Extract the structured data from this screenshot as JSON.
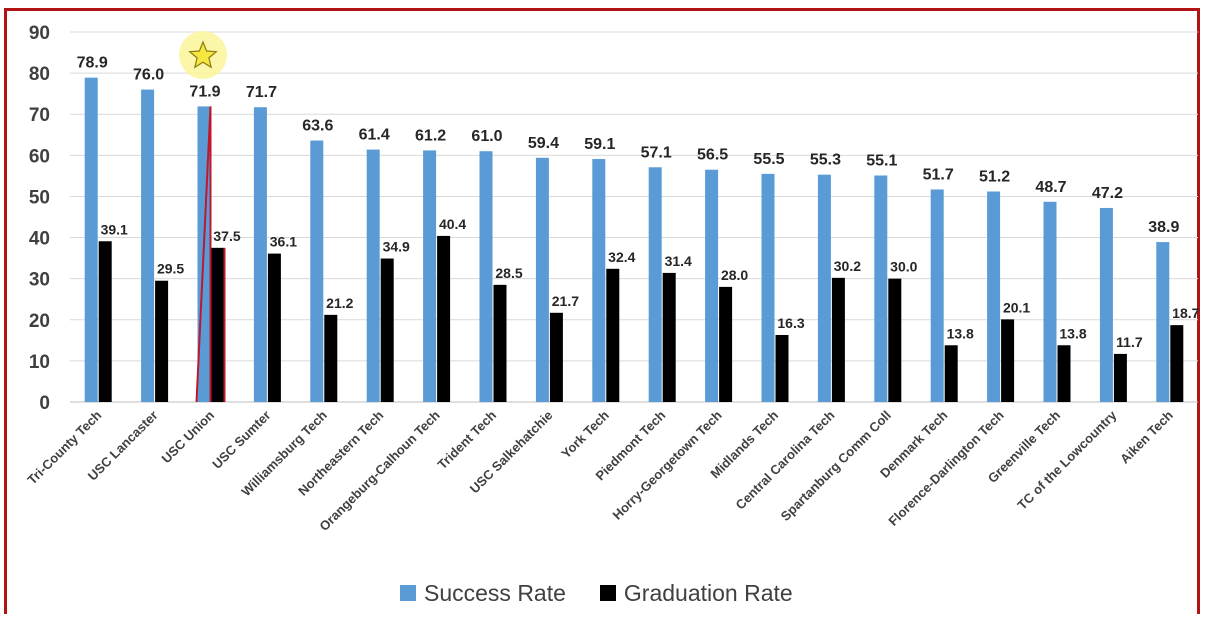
{
  "chart_data": {
    "type": "bar",
    "categories": [
      "Tri-County Tech",
      "USC Lancaster",
      "USC Union",
      "USC Sumter",
      "Williamsburg Tech",
      "Northeastern Tech",
      "Orangeburg-Calhoun Tech",
      "Trident Tech",
      "USC Salkehatchie",
      "York Tech",
      "Piedmont Tech",
      "Horry-Georgetown Tech",
      "Midlands Tech",
      "Central Carolina Tech",
      "Spartanburg Comm Coll",
      "Denmark Tech",
      "Florence-Darlington Tech",
      "Greenville Tech",
      "TC of the Lowcountry",
      "Aiken Tech"
    ],
    "series": [
      {
        "name": "Success Rate",
        "color": "#5b9bd5",
        "values": [
          78.9,
          76.0,
          71.9,
          71.7,
          63.6,
          61.4,
          61.2,
          61.0,
          59.4,
          59.1,
          57.1,
          56.5,
          55.5,
          55.3,
          55.1,
          51.7,
          51.2,
          48.7,
          47.2,
          38.9
        ],
        "labels": [
          "78.9",
          "76.0",
          "71.9",
          "71.7",
          "63.6",
          "61.4",
          "61.2",
          "61.0",
          "59.4",
          "59.1",
          "57.1",
          "56.5",
          "55.5",
          "55.3",
          "55.1",
          "51.7",
          "51.2",
          "48.7",
          "47.2",
          "38.9"
        ]
      },
      {
        "name": "Graduation Rate",
        "color": "#000000",
        "values": [
          39.1,
          29.5,
          37.5,
          36.1,
          21.2,
          34.9,
          40.4,
          28.5,
          21.7,
          32.4,
          31.4,
          28.0,
          16.3,
          30.2,
          30.0,
          13.8,
          20.1,
          13.8,
          11.7,
          18.7
        ],
        "labels": [
          "39.1",
          "29.5",
          "37.5",
          "36.1",
          "21.2",
          "34.9",
          "40.4",
          "28.5",
          "21.7",
          "32.4",
          "31.4",
          "28.0",
          "16.3",
          "30.2",
          "30.0",
          "13.8",
          "20.1",
          "13.8",
          "11.7",
          "18.7"
        ]
      }
    ],
    "ylim": [
      0,
      90
    ],
    "yticks": [
      "0",
      "10",
      "20",
      "30",
      "40",
      "50",
      "60",
      "70",
      "80",
      "90"
    ],
    "grid": true,
    "legend": "bottom",
    "highlight": {
      "category": "USC Union",
      "marker": "star-icon",
      "star_color": "#f5e642",
      "glow_color": "#fbf59a",
      "outline_color": "#c0182a"
    }
  },
  "frame_color": "#b01414"
}
